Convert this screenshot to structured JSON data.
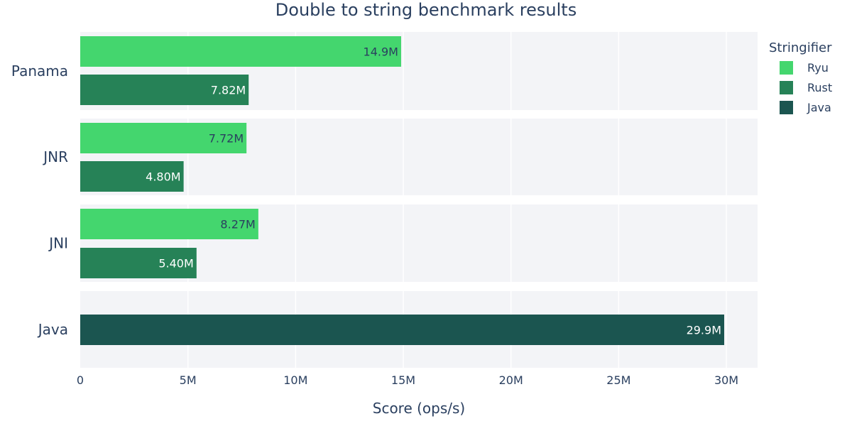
{
  "chart_data": {
    "type": "bar",
    "orientation": "horizontal",
    "title": "Double to string benchmark results",
    "xlabel": "Score (ops/s)",
    "ylabel": "",
    "xlim": [
      0,
      31500000
    ],
    "x_ticks": [
      {
        "value": 0,
        "label": "0"
      },
      {
        "value": 5000000,
        "label": "5M"
      },
      {
        "value": 10000000,
        "label": "10M"
      },
      {
        "value": 15000000,
        "label": "15M"
      },
      {
        "value": 20000000,
        "label": "20M"
      },
      {
        "value": 25000000,
        "label": "25M"
      },
      {
        "value": 30000000,
        "label": "30M"
      }
    ],
    "grid": true,
    "legend": {
      "title": "Stringifier",
      "placement": "right",
      "items": [
        {
          "name": "Ryu",
          "color": "#44d66e"
        },
        {
          "name": "Rust",
          "color": "#268257"
        },
        {
          "name": "Java",
          "color": "#1b5550"
        }
      ]
    },
    "groups": [
      {
        "category": "Panama",
        "bars": [
          {
            "series": "Ryu",
            "value": 14900000,
            "label": "14.9M",
            "color": "#44d66e",
            "label_color": "#2a3f5f"
          },
          {
            "series": "Rust",
            "value": 7820000,
            "label": "7.82M",
            "color": "#268257",
            "label_color": "#ffffff"
          }
        ]
      },
      {
        "category": "JNR",
        "bars": [
          {
            "series": "Ryu",
            "value": 7720000,
            "label": "7.72M",
            "color": "#44d66e",
            "label_color": "#2a3f5f"
          },
          {
            "series": "Rust",
            "value": 4800000,
            "label": "4.80M",
            "color": "#268257",
            "label_color": "#ffffff"
          }
        ]
      },
      {
        "category": "JNI",
        "bars": [
          {
            "series": "Ryu",
            "value": 8270000,
            "label": "8.27M",
            "color": "#44d66e",
            "label_color": "#2a3f5f"
          },
          {
            "series": "Rust",
            "value": 5400000,
            "label": "5.40M",
            "color": "#268257",
            "label_color": "#ffffff"
          }
        ]
      },
      {
        "category": "Java",
        "bars": [
          {
            "series": "Java",
            "value": 29900000,
            "label": "29.9M",
            "color": "#1b5550",
            "label_color": "#ffffff"
          }
        ]
      }
    ],
    "panel_background": "#f3f4f7",
    "grid_color": "#ffffff",
    "text_color": "#2a3f5f"
  }
}
